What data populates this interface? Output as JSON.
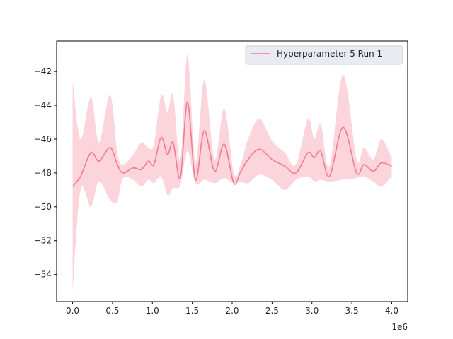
{
  "chart_data": {
    "type": "line",
    "title": "",
    "xlabel": "",
    "ylabel": "",
    "x_offset_label": "1e6",
    "xlim": [
      -200000,
      4200000
    ],
    "ylim": [
      -55.6,
      -40.2
    ],
    "xticks": [
      0,
      500000,
      1000000,
      1500000,
      2000000,
      2500000,
      3000000,
      3500000,
      4000000
    ],
    "xtick_labels": [
      "0.0",
      "0.5",
      "1.0",
      "1.5",
      "2.0",
      "2.5",
      "3.0",
      "3.5",
      "4.0"
    ],
    "yticks": [
      -54,
      -52,
      -50,
      -48,
      -46,
      -44,
      -42
    ],
    "ytick_labels": [
      "−54",
      "−52",
      "−50",
      "−48",
      "−46",
      "−44",
      "−42"
    ],
    "grid": false,
    "legend_position": "upper right",
    "series": [
      {
        "name": "Hyperparameter 5 Run 1",
        "color": "#f37b8e",
        "band_color": "#fcd4dc",
        "x": [
          0,
          100000,
          230000,
          330000,
          470000,
          560000,
          630000,
          760000,
          860000,
          950000,
          1020000,
          1110000,
          1190000,
          1260000,
          1350000,
          1440000,
          1540000,
          1650000,
          1780000,
          1900000,
          2020000,
          2100000,
          2200000,
          2340000,
          2500000,
          2660000,
          2800000,
          2950000,
          3030000,
          3110000,
          3220000,
          3390000,
          3560000,
          3650000,
          3770000,
          3870000,
          4000000
        ],
        "y": [
          -48.8,
          -48.2,
          -46.8,
          -47.3,
          -46.5,
          -47.5,
          -48.0,
          -47.7,
          -47.8,
          -47.3,
          -47.5,
          -45.9,
          -46.9,
          -46.2,
          -48.3,
          -43.8,
          -48.4,
          -45.5,
          -47.9,
          -46.3,
          -48.6,
          -48.0,
          -47.2,
          -46.6,
          -47.2,
          -47.6,
          -48.0,
          -46.8,
          -47.1,
          -46.7,
          -48.2,
          -45.3,
          -48.0,
          -47.5,
          -47.9,
          -47.4,
          -47.6
        ],
        "upper": [
          -42.6,
          -46.0,
          -43.5,
          -46.2,
          -43.4,
          -46.8,
          -47.5,
          -46.9,
          -46.2,
          -46.5,
          -46.3,
          -43.4,
          -44.4,
          -43.4,
          -47.2,
          -41.0,
          -47.4,
          -42.5,
          -47.2,
          -44.2,
          -48.0,
          -47.6,
          -46.0,
          -44.8,
          -46.1,
          -46.8,
          -47.5,
          -44.8,
          -46.0,
          -45.1,
          -47.6,
          -42.2,
          -47.2,
          -46.5,
          -47.2,
          -46.0,
          -47.1
        ],
        "lower": [
          -55.0,
          -49.0,
          -50.0,
          -48.5,
          -49.6,
          -49.7,
          -48.3,
          -48.4,
          -48.8,
          -48.4,
          -48.6,
          -48.2,
          -49.3,
          -48.9,
          -48.7,
          -46.7,
          -48.6,
          -48.4,
          -48.6,
          -48.3,
          -48.6,
          -48.5,
          -48.6,
          -48.1,
          -48.4,
          -49.0,
          -48.4,
          -48.2,
          -48.5,
          -48.4,
          -48.5,
          -48.4,
          -48.3,
          -48.2,
          -48.5,
          -48.8,
          -48.2
        ]
      }
    ]
  }
}
